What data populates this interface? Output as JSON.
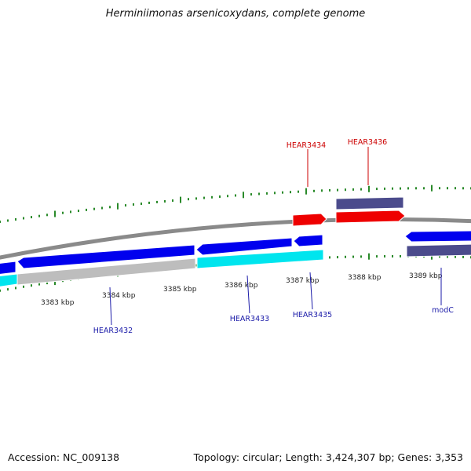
{
  "title": "Herminiimonas arsenicoxydans, complete genome",
  "footer": {
    "accession": "Accession: NC_009138",
    "topology": "Topology: circular; Length: 3,424,307 bp; Genes: 3,353"
  },
  "colors": {
    "forward_cds": "#0000ee",
    "reverse_cds": "#00e5ee",
    "highlight": "#ee0000",
    "operon": "#4b4b8c",
    "pseudo": "#bdbdbd",
    "backbone": "#8a8a8a",
    "ticks": "#2a8a2a",
    "label_red": "#cc0000",
    "label_blue": "#1a1aa8"
  },
  "scale": {
    "unit": "kbp",
    "labels": [
      "3383 kbp",
      "3384 kbp",
      "3385 kbp",
      "3386 kbp",
      "3387 kbp",
      "3388 kbp",
      "3389 kbp"
    ]
  },
  "genes": [
    {
      "id": "HEAR3432",
      "color": "blue"
    },
    {
      "id": "HEAR3433",
      "color": "blue"
    },
    {
      "id": "HEAR3434",
      "color": "red"
    },
    {
      "id": "HEAR3435",
      "color": "blue"
    },
    {
      "id": "HEAR3436",
      "color": "red"
    },
    {
      "id": "modC",
      "color": "blue"
    }
  ]
}
